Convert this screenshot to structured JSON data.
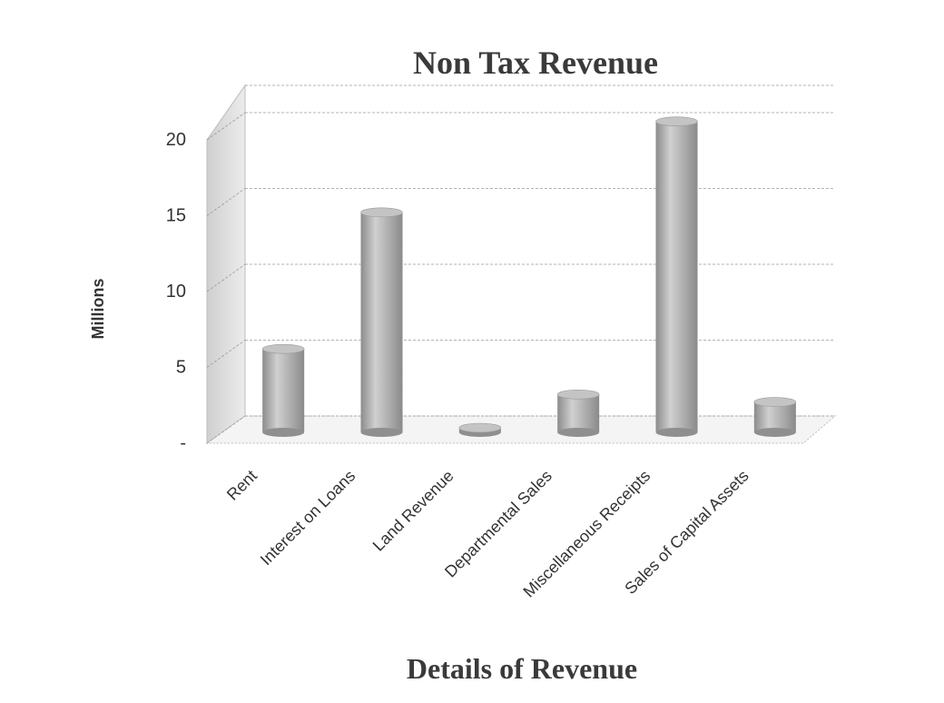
{
  "chart_data": {
    "type": "bar",
    "title": "Non Tax Revenue",
    "xlabel": "Details of Revenue",
    "ylabel": "Millions",
    "categories": [
      "Rent",
      "Interest on Loans",
      "Land Revenue",
      "Departmental Sales",
      "Miscellaneous Receipts",
      "Sales of Capital Assets"
    ],
    "values": [
      5.5,
      14.5,
      0.3,
      2.5,
      20.5,
      2.0
    ],
    "ylim": [
      0,
      20
    ],
    "yticks": [
      {
        "value": 0,
        "label": "-"
      },
      {
        "value": 5,
        "label": "5"
      },
      {
        "value": 10,
        "label": "10"
      },
      {
        "value": 15,
        "label": "15"
      },
      {
        "value": 20,
        "label": "20"
      }
    ],
    "grid": true,
    "bar_shape": "cylinder",
    "colors": {
      "bar": "#a8a8a8",
      "bar_highlight": "#d2d2d2",
      "bar_top": "#c4c4c4",
      "wall": "#dcdcdc",
      "grid": "#9a9a9a"
    }
  }
}
